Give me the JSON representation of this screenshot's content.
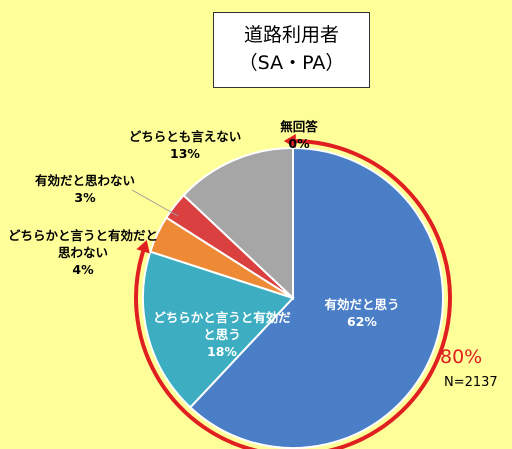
{
  "chart_data": {
    "type": "pie",
    "title": "道路利用者",
    "subtitle": "（SA・PA）",
    "categories": [
      "有効だと思う",
      "どちらかと言うと有効だと思う",
      "どちらかと言うと有効だと思わない",
      "有効だと思わない",
      "どちらとも言えない",
      "無回答"
    ],
    "values": [
      62,
      18,
      4,
      3,
      13,
      0
    ],
    "value_labels": [
      "62%",
      "18%",
      "4%",
      "3%",
      "13%",
      "0%"
    ],
    "colors": [
      "#4a7ec7",
      "#3daec2",
      "#ee8a35",
      "#d9403f",
      "#a6a6a6",
      "#d0d0d0"
    ],
    "annotations": [
      "80%",
      "N=2137"
    ]
  }
}
